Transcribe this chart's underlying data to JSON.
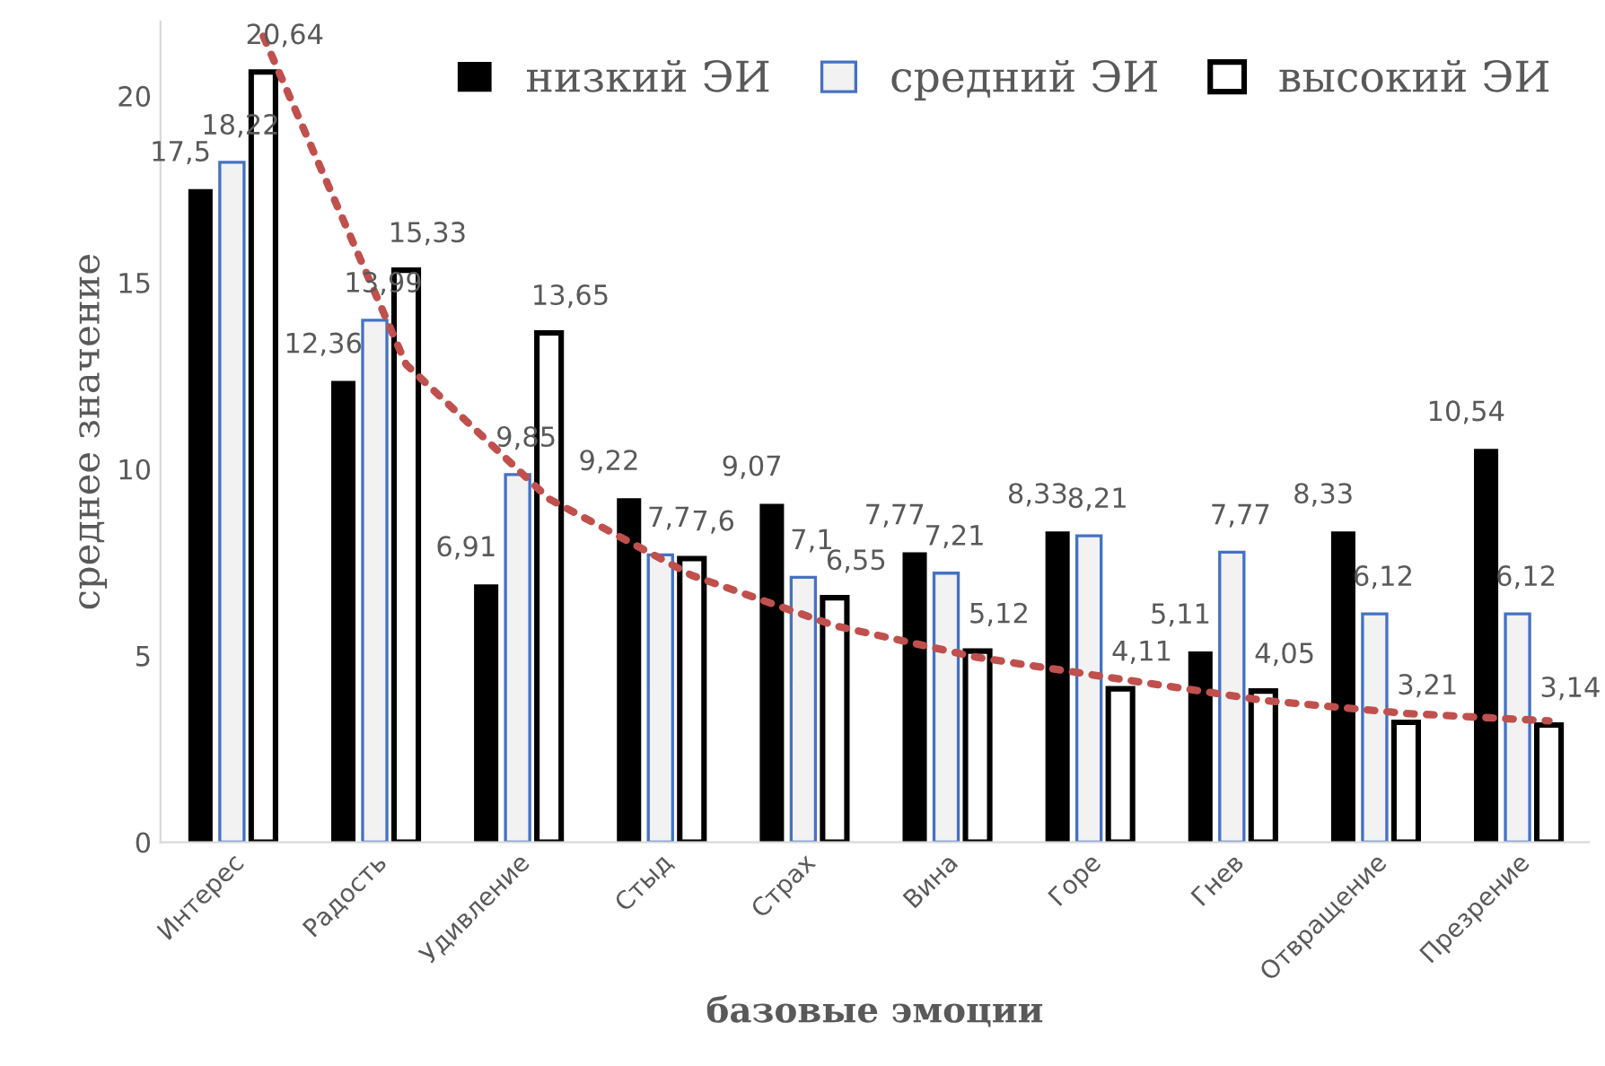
{
  "chart_data": {
    "type": "bar",
    "xlabel": "базовые эмоции",
    "ylabel": "среднее значение",
    "categories": [
      "Интерес",
      "Радость",
      "Удивление",
      "Стыд",
      "Страх",
      "Вина",
      "Горе",
      "Гнев",
      "Отвращение",
      "Презрение"
    ],
    "series": [
      {
        "name": "низкий ЭИ",
        "color": "#000000",
        "values": [
          17.5,
          12.36,
          6.91,
          9.22,
          9.07,
          7.77,
          8.33,
          5.11,
          8.33,
          10.54
        ],
        "value_labels": [
          "17,5",
          "12,36",
          "6,91",
          "9,22",
          "9,07",
          "7,77",
          "8,33",
          "5,11",
          "8,33",
          "10,54"
        ]
      },
      {
        "name": "средний ЭИ",
        "color": "#f2f2f2",
        "values": [
          18.22,
          13.99,
          9.85,
          7.7,
          7.1,
          7.21,
          8.21,
          7.77,
          6.12,
          6.12
        ],
        "value_labels": [
          "18,22",
          "13,99",
          "9,85",
          "7,7",
          "7,1",
          "7,21",
          "8,21",
          "7,77",
          "6,12",
          "6,12"
        ]
      },
      {
        "name": "высокий ЭИ",
        "color": "#ffffff",
        "values": [
          20.64,
          15.33,
          13.65,
          7.6,
          6.55,
          5.12,
          4.11,
          4.05,
          3.21,
          3.14
        ],
        "value_labels": [
          "20,64",
          "15,33",
          "13,65",
          "7,6",
          "6,55",
          "5,12",
          "4,11",
          "4,05",
          "3,21",
          "3,14"
        ]
      },
      {
        "type": "line",
        "color": "#c0504d",
        "line_style": "dotted",
        "marker": "none",
        "values": [
          21.6,
          12.8,
          9.2,
          7.15,
          5.8,
          4.95,
          4.37,
          3.8,
          3.45,
          3.25
        ]
      }
    ],
    "ylim": [
      0,
      22
    ],
    "yticks": [
      0,
      5,
      10,
      15,
      20
    ],
    "grid": false,
    "legend": "top right"
  }
}
